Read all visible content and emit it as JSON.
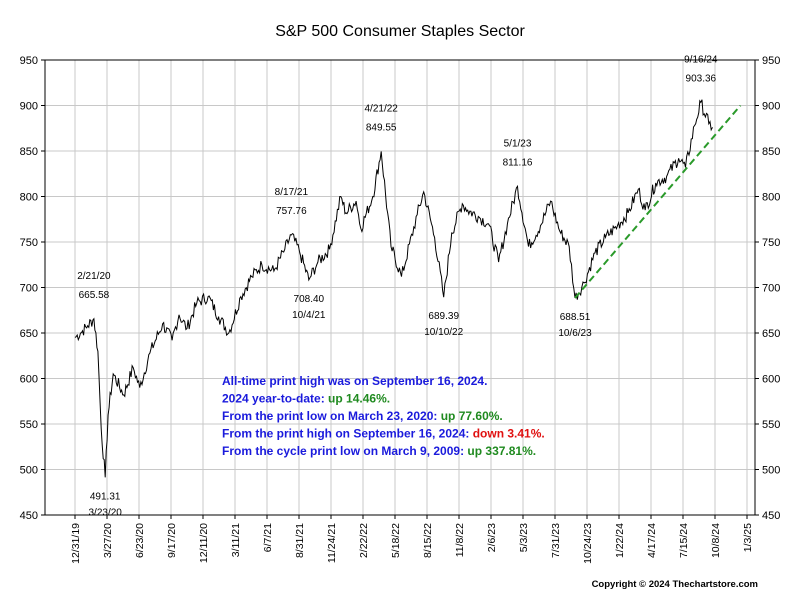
{
  "chart_data": {
    "type": "line",
    "title": "S&P 500 Consumer Staples Sector",
    "ylim": [
      450,
      950
    ],
    "y_ticks": [
      450,
      500,
      550,
      600,
      650,
      700,
      750,
      800,
      850,
      900,
      950
    ],
    "grid": true,
    "x_tick_labels": [
      "12/31/19",
      "3/27/20",
      "6/23/20",
      "9/17/20",
      "12/11/20",
      "3/11/21",
      "6/7/21",
      "8/31/21",
      "11/24/21",
      "2/22/22",
      "5/18/22",
      "8/15/22",
      "11/8/22",
      "2/6/23",
      "5/3/23",
      "7/31/23",
      "10/24/23",
      "1/22/24",
      "4/17/24",
      "7/15/24",
      "10/8/24",
      "1/3/25"
    ],
    "series": [
      {
        "color": "#000000",
        "points": [
          [
            "2019-12-31",
            645
          ],
          [
            "2020-01-15",
            650
          ],
          [
            "2020-02-04",
            658
          ],
          [
            "2020-02-21",
            665.58
          ],
          [
            "2020-03-03",
            630
          ],
          [
            "2020-03-12",
            545
          ],
          [
            "2020-03-23",
            491.31
          ],
          [
            "2020-03-31",
            560
          ],
          [
            "2020-04-14",
            605
          ],
          [
            "2020-05-13",
            582
          ],
          [
            "2020-06-08",
            612
          ],
          [
            "2020-06-26",
            590
          ],
          [
            "2020-07-24",
            628
          ],
          [
            "2020-08-28",
            660
          ],
          [
            "2020-09-23",
            642
          ],
          [
            "2020-10-12",
            670
          ],
          [
            "2020-11-03",
            655
          ],
          [
            "2020-11-30",
            683
          ],
          [
            "2020-12-31",
            690
          ],
          [
            "2021-01-29",
            668
          ],
          [
            "2021-02-26",
            650
          ],
          [
            "2021-03-31",
            690
          ],
          [
            "2021-04-30",
            712
          ],
          [
            "2021-05-28",
            725
          ],
          [
            "2021-06-30",
            718
          ],
          [
            "2021-07-30",
            742
          ],
          [
            "2021-08-17",
            757.76
          ],
          [
            "2021-09-08",
            740
          ],
          [
            "2021-10-04",
            708.4
          ],
          [
            "2021-10-29",
            728
          ],
          [
            "2021-11-30",
            742
          ],
          [
            "2021-12-31",
            800
          ],
          [
            "2022-01-14",
            782
          ],
          [
            "2022-02-11",
            795
          ],
          [
            "2022-02-24",
            765
          ],
          [
            "2022-03-29",
            800
          ],
          [
            "2022-04-21",
            849.55
          ],
          [
            "2022-05-18",
            745
          ],
          [
            "2022-06-16",
            712
          ],
          [
            "2022-07-29",
            780
          ],
          [
            "2022-08-16",
            805
          ],
          [
            "2022-09-15",
            755
          ],
          [
            "2022-10-10",
            689.39
          ],
          [
            "2022-11-01",
            760
          ],
          [
            "2022-11-30",
            792
          ],
          [
            "2022-12-15",
            785
          ],
          [
            "2023-01-13",
            778
          ],
          [
            "2023-02-10",
            770
          ],
          [
            "2023-03-10",
            728
          ],
          [
            "2023-04-03",
            770
          ],
          [
            "2023-05-01",
            811.16
          ],
          [
            "2023-05-31",
            745
          ],
          [
            "2023-07-03",
            768
          ],
          [
            "2023-07-31",
            795
          ],
          [
            "2023-08-25",
            762
          ],
          [
            "2023-09-20",
            745
          ],
          [
            "2023-10-06",
            688.51
          ],
          [
            "2023-10-31",
            705
          ],
          [
            "2023-11-30",
            738
          ],
          [
            "2023-12-29",
            755
          ],
          [
            "2024-01-31",
            768
          ],
          [
            "2024-02-29",
            782
          ],
          [
            "2024-03-28",
            808
          ],
          [
            "2024-04-16",
            785
          ],
          [
            "2024-05-15",
            815
          ],
          [
            "2024-06-14",
            822
          ],
          [
            "2024-07-17",
            842
          ],
          [
            "2024-08-05",
            832
          ],
          [
            "2024-08-30",
            878
          ],
          [
            "2024-09-16",
            903.36
          ],
          [
            "2024-10-08",
            880
          ],
          [
            "2024-10-18",
            876
          ]
        ]
      },
      {
        "color": "#2a9a2a",
        "style": "dashed",
        "points": [
          [
            "2023-10-06",
            688.51
          ],
          [
            "2025-01-03",
            900
          ]
        ]
      }
    ],
    "annotations": [
      {
        "lines": [
          "2/21/20",
          "665.58"
        ],
        "x": "2020-02-21",
        "y": 665.58,
        "place": "above"
      },
      {
        "lines": [
          "491.31",
          "3/23/20"
        ],
        "x": "2020-03-23",
        "y": 491.31,
        "place": "below"
      },
      {
        "lines": [
          "8/17/21",
          "757.76"
        ],
        "x": "2021-08-17",
        "y": 757.76,
        "place": "above"
      },
      {
        "lines": [
          "708.40",
          "10/4/21"
        ],
        "x": "2021-10-04",
        "y": 708.4,
        "place": "below"
      },
      {
        "lines": [
          "4/21/22",
          "849.55"
        ],
        "x": "2022-04-21",
        "y": 849.55,
        "place": "above"
      },
      {
        "lines": [
          "689.39",
          "10/10/22"
        ],
        "x": "2022-10-10",
        "y": 689.39,
        "place": "below"
      },
      {
        "lines": [
          "5/1/23",
          "811.16"
        ],
        "x": "2023-05-01",
        "y": 811.16,
        "place": "above"
      },
      {
        "lines": [
          "688.51",
          "10/6/23"
        ],
        "x": "2023-10-06",
        "y": 688.51,
        "place": "below"
      },
      {
        "lines": [
          "9/16/24",
          "903.36"
        ],
        "x": "2024-09-16",
        "y": 903.36,
        "place": "above"
      }
    ],
    "notes": [
      {
        "parts": [
          {
            "text": "All-time print high was on September 16, 2024.",
            "color": "#1a1adc"
          }
        ]
      },
      {
        "parts": [
          {
            "text": "2024 year-to-date:  ",
            "color": "#1a1adc"
          },
          {
            "text": "up 14.46%.",
            "color": "#1f8a1f"
          }
        ]
      },
      {
        "parts": [
          {
            "text": "From the print low on March 23, 2020:  ",
            "color": "#1a1adc"
          },
          {
            "text": "up 77.60%.",
            "color": "#1f8a1f"
          }
        ]
      },
      {
        "parts": [
          {
            "text": "From the print high on September 16, 2024:  ",
            "color": "#1a1adc"
          },
          {
            "text": "down 3.41%.",
            "color": "#e01010"
          }
        ]
      },
      {
        "parts": [
          {
            "text": "From the cycle print low on March 9, 2009:  ",
            "color": "#1a1adc"
          },
          {
            "text": "up 337.81%.",
            "color": "#1f8a1f"
          }
        ]
      }
    ],
    "copyright": "Copyright © 2024 Thechartstore.com"
  }
}
